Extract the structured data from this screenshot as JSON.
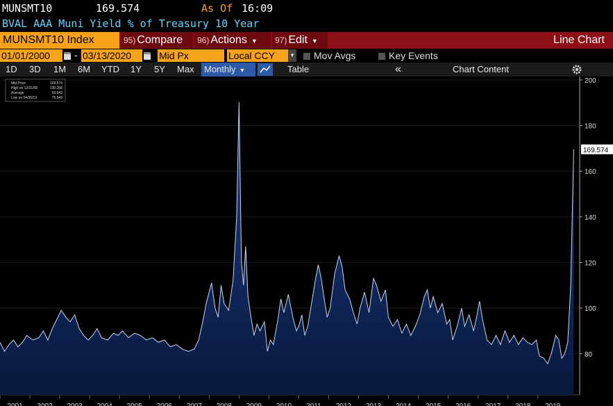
{
  "header": {
    "ticker": "MUNSMT10",
    "as_of_label": "As Of",
    "time": "16:09",
    "description": "BVAL AAA Muni Yield % of Treasury 10 Year"
  },
  "toolbar": {
    "security": "MUNSMT10 Index",
    "compare_num": "95)",
    "compare": "Compare",
    "actions_num": "96)",
    "actions": "Actions",
    "edit_num": "97)",
    "edit": "Edit",
    "view": "Line Chart"
  },
  "controls": {
    "start_date": "01/01/2000",
    "dash": "-",
    "end_date": "03/13/2020",
    "field": "Mid Px",
    "currency": "Local CCY",
    "mov_avgs": "Mov Avgs",
    "key_events": "Key Events"
  },
  "periods": [
    "1D",
    "3D",
    "1M",
    "6M",
    "YTD",
    "1Y",
    "5Y",
    "Max"
  ],
  "frequency": "Monthly",
  "table": "Table",
  "collapse": "«",
  "chart_content": "Chart Content",
  "chart_data": {
    "type": "line",
    "legend": [
      {
        "label": "Mid Price",
        "value": 169.574
      },
      {
        "label": "High on 12/31/08",
        "value": 190.268
      },
      {
        "label": "Average",
        "value": 93.543
      },
      {
        "label": "Low on 04/30/19",
        "value": 75.549
      }
    ],
    "xlim": [
      2001,
      2020.4
    ],
    "xticks": [
      2001,
      2002,
      2003,
      2004,
      2005,
      2006,
      2007,
      2008,
      2009,
      2010,
      2011,
      2012,
      2013,
      2014,
      2015,
      2016,
      2017,
      2018,
      2019
    ],
    "ylim": [
      64.4,
      201.5
    ],
    "yticks": [
      80,
      100,
      120,
      140,
      160,
      180,
      200
    ],
    "grid": true,
    "x": [
      2001.0,
      2001.15,
      2001.3,
      2001.45,
      2001.6,
      2001.75,
      2001.9,
      2002.1,
      2002.3,
      2002.45,
      2002.6,
      2002.75,
      2002.9,
      2003.05,
      2003.2,
      2003.35,
      2003.5,
      2003.65,
      2003.8,
      2003.95,
      2004.1,
      2004.25,
      2004.4,
      2004.6,
      2004.8,
      2004.95,
      2005.1,
      2005.3,
      2005.5,
      2005.7,
      2005.9,
      2006.1,
      2006.3,
      2006.5,
      2006.7,
      2006.9,
      2007.1,
      2007.3,
      2007.5,
      2007.65,
      2007.8,
      2007.9,
      2008.0,
      2008.08,
      2008.2,
      2008.3,
      2008.4,
      2008.5,
      2008.65,
      2008.8,
      2008.92,
      2009.0,
      2009.08,
      2009.15,
      2009.22,
      2009.3,
      2009.4,
      2009.5,
      2009.6,
      2009.7,
      2009.85,
      2009.95,
      2010.05,
      2010.15,
      2010.3,
      2010.4,
      2010.5,
      2010.65,
      2010.8,
      2010.92,
      2011.0,
      2011.1,
      2011.2,
      2011.3,
      2011.45,
      2011.55,
      2011.65,
      2011.75,
      2011.85,
      2011.95,
      2012.05,
      2012.2,
      2012.35,
      2012.45,
      2012.55,
      2012.7,
      2012.85,
      2012.95,
      2013.05,
      2013.2,
      2013.35,
      2013.5,
      2013.6,
      2013.75,
      2013.9,
      2014.0,
      2014.15,
      2014.3,
      2014.45,
      2014.6,
      2014.75,
      2014.9,
      2015.05,
      2015.2,
      2015.3,
      2015.4,
      2015.5,
      2015.65,
      2015.8,
      2015.95,
      2016.05,
      2016.15,
      2016.3,
      2016.45,
      2016.55,
      2016.7,
      2016.85,
      2016.95,
      2017.05,
      2017.15,
      2017.3,
      2017.45,
      2017.6,
      2017.75,
      2017.9,
      2018.05,
      2018.2,
      2018.35,
      2018.5,
      2018.65,
      2018.8,
      2018.95,
      2019.05,
      2019.2,
      2019.33,
      2019.45,
      2019.6,
      2019.7,
      2019.8,
      2019.9,
      2020.0,
      2020.1,
      2020.2
    ],
    "series": [
      {
        "name": "Mid Price",
        "color": "#c9d5ef",
        "values": [
          85,
          81,
          84,
          86,
          83,
          85,
          88,
          86,
          87,
          90,
          86,
          91,
          95,
          99,
          96,
          94,
          97,
          91,
          88,
          86,
          88,
          91,
          87,
          86,
          89,
          88,
          90,
          87,
          89,
          88,
          86,
          87,
          85,
          86,
          83,
          84,
          82,
          81,
          82,
          86,
          95,
          102,
          107,
          111,
          100,
          96,
          110,
          102,
          99,
          112,
          140,
          190.268,
          120,
          110,
          127,
          105,
          96,
          88,
          93,
          90,
          94,
          81,
          86,
          84,
          95,
          104,
          98,
          106,
          96,
          90,
          92,
          97,
          88,
          92,
          104,
          112,
          119,
          113,
          104,
          96,
          100,
          115,
          123,
          118,
          108,
          104,
          97,
          93,
          100,
          107,
          98,
          113,
          110,
          103,
          108,
          96,
          92,
          95,
          89,
          93,
          88,
          92,
          97,
          105,
          108,
          100,
          105,
          98,
          102,
          93,
          95,
          86,
          92,
          100,
          92,
          97,
          90,
          96,
          103,
          95,
          86,
          84,
          88,
          84,
          90,
          85,
          88,
          84,
          87,
          85,
          84,
          86,
          79,
          78,
          75.549,
          80,
          88,
          86,
          78,
          80,
          85,
          110,
          169.574
        ]
      }
    ]
  }
}
